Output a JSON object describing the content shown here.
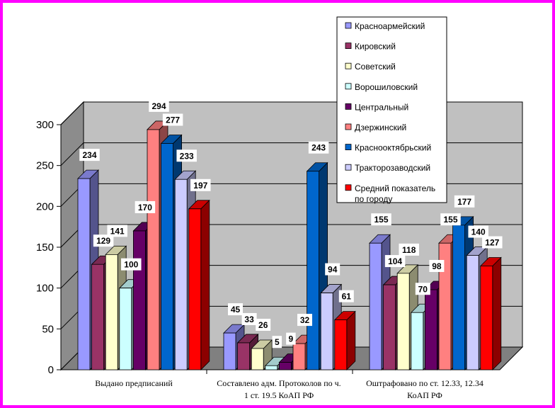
{
  "chart_data": {
    "type": "bar",
    "title": "",
    "xlabel": "",
    "ylabel": "",
    "ylim": [
      0,
      300
    ],
    "yticks": [
      0,
      50,
      100,
      150,
      200,
      250,
      300
    ],
    "grid": true,
    "legend_position": "top-right",
    "categories": [
      [
        "Выдано предписаний"
      ],
      [
        "Составлено адм. Протоколов по ч.",
        "1 ст. 19.5 КоАП РФ"
      ],
      [
        "Оштрафовано по ст. 12.33, 12.34",
        "КоАП РФ"
      ]
    ],
    "series": [
      {
        "name": "Красноармейский",
        "color": "#9999ff",
        "values": [
          234,
          45,
          155
        ]
      },
      {
        "name": "Кировский",
        "color": "#993366",
        "values": [
          129,
          33,
          104
        ]
      },
      {
        "name": "Советский",
        "color": "#ffffcc",
        "values": [
          141,
          26,
          118
        ]
      },
      {
        "name": "Ворошиловский",
        "color": "#ccffff",
        "values": [
          100,
          5,
          70
        ]
      },
      {
        "name": "Центральный",
        "color": "#660066",
        "values": [
          170,
          9,
          98
        ]
      },
      {
        "name": "Дзержинский",
        "color": "#ff8080",
        "values": [
          294,
          32,
          155
        ]
      },
      {
        "name": "Краснооктябрьский",
        "color": "#0066cc",
        "values": [
          277,
          243,
          177
        ]
      },
      {
        "name": "Тракторозаводский",
        "color": "#ccccff",
        "values": [
          233,
          94,
          140
        ]
      },
      {
        "name": "Средний показатель по городу",
        "color": "#ff0000",
        "values": [
          197,
          61,
          127
        ]
      }
    ]
  }
}
